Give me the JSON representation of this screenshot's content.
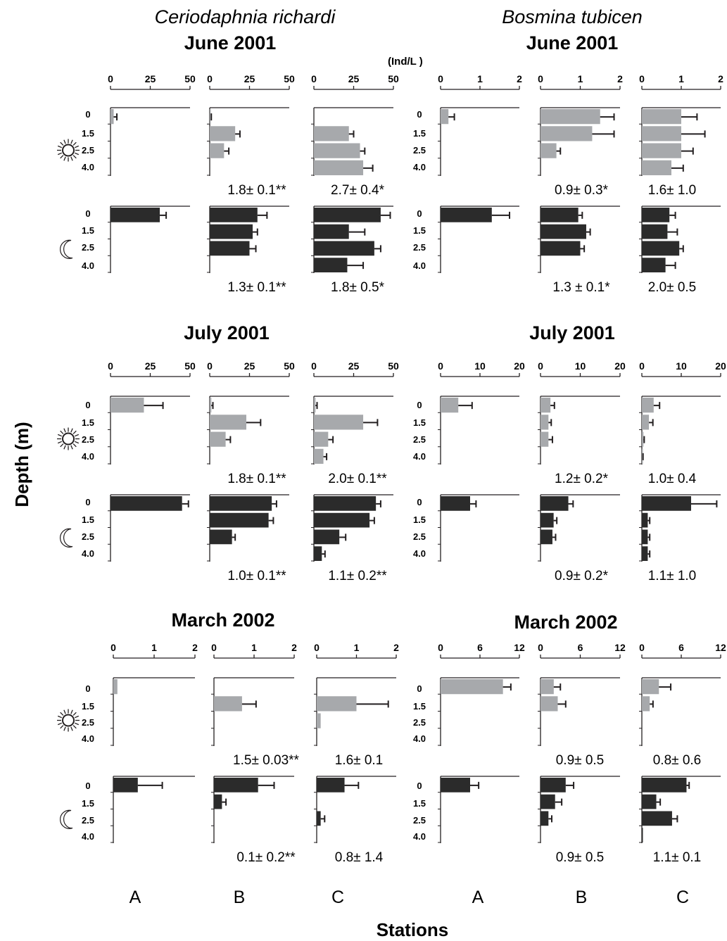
{
  "figure": {
    "species": [
      "Ceriodaphnia richardi",
      "Bosmina tubicen"
    ],
    "unit_label": "(Ind/L  )",
    "ylabel": "Depth (m)",
    "xlabel": "Stations",
    "station_labels": [
      "A",
      "B",
      "C",
      "A",
      "B",
      "C"
    ],
    "colors": {
      "day": "#a7a9ac",
      "night": "#2b2b2b",
      "axis": "#231f20"
    }
  },
  "chart_data": [
    {
      "type": "bar",
      "species": "Ceriodaphnia richardi",
      "period": "June 2001",
      "xlim": [
        0,
        50
      ],
      "ticks": [
        "0",
        "25",
        "50"
      ],
      "depths": [
        "0",
        "1.5",
        "2.5",
        "4.0"
      ],
      "stations": [
        {
          "station": "A",
          "day": {
            "values": [
              2,
              null,
              null,
              null
            ],
            "errors": [
              2,
              null,
              null,
              null
            ],
            "note": ""
          },
          "night": {
            "values": [
              31,
              null,
              null,
              null
            ],
            "errors": [
              4,
              null,
              null,
              null
            ],
            "note": ""
          }
        },
        {
          "station": "B",
          "day": {
            "values": [
              0.5,
              16,
              9,
              null
            ],
            "errors": [
              0.5,
              3,
              3,
              null
            ],
            "note": "1.8± 0.1**"
          },
          "night": {
            "values": [
              30,
              27,
              25,
              null
            ],
            "errors": [
              6,
              3,
              4,
              null
            ],
            "note": "1.3± 0.1**"
          }
        },
        {
          "station": "C",
          "day": {
            "values": null,
            "errors": null,
            "value_series": [
              22,
              29,
              31
            ],
            "note": "2.7± 0.4*"
          },
          "night": {
            "values": [
              42,
              22,
              38,
              21
            ],
            "errors": [
              6,
              10,
              4,
              10
            ],
            "note": "1.8± 0.5*"
          }
        }
      ]
    },
    {
      "type": "bar",
      "species": "Bosmina tubicen",
      "period": "June 2001",
      "xlim": [
        0,
        2
      ],
      "ticks": [
        "0",
        "1",
        "2"
      ],
      "depths": [
        "0",
        "1.5",
        "2.5",
        "4.0"
      ],
      "stations": [
        {
          "station": "A",
          "day": {
            "values": [
              0.2,
              null,
              null,
              null
            ],
            "errors": [
              0.15,
              null,
              null,
              null
            ],
            "note": ""
          },
          "night": {
            "values": [
              1.3,
              null,
              null,
              null
            ],
            "errors": [
              0.45,
              null,
              null,
              null
            ],
            "note": ""
          }
        },
        {
          "station": "B",
          "day": {
            "values": [
              1.5,
              1.3,
              0.4,
              null
            ],
            "errors": [
              0.35,
              0.55,
              0.1,
              null
            ],
            "note": "0.9± 0.3*"
          },
          "night": {
            "values": [
              0.95,
              1.15,
              1.0,
              null
            ],
            "errors": [
              0.1,
              0.1,
              0.1,
              null
            ],
            "note": "1.3 ± 0.1*"
          }
        },
        {
          "station": "C",
          "day": {
            "values": [
              1.0,
              1.0,
              1.0,
              0.75
            ],
            "errors": [
              0.4,
              0.6,
              0.3,
              0.3
            ],
            "note": "1.6± 1.0"
          },
          "night": {
            "values": [
              0.7,
              0.65,
              0.95,
              0.6
            ],
            "errors": [
              0.15,
              0.25,
              0.1,
              0.25
            ],
            "note": "2.0± 0.5"
          }
        }
      ]
    },
    {
      "type": "bar",
      "species": "Ceriodaphnia richardi",
      "period": "July 2001",
      "xlim": [
        0,
        50
      ],
      "ticks": [
        "0",
        "25",
        "50"
      ],
      "depths": [
        "0",
        "1.5",
        "2.5",
        "4.0"
      ],
      "stations": [
        {
          "station": "A",
          "day": {
            "values": [
              21,
              null,
              null,
              null
            ],
            "errors": [
              12,
              null,
              null,
              null
            ],
            "note": ""
          },
          "night": {
            "values": [
              45,
              null,
              null,
              null
            ],
            "errors": [
              4,
              null,
              null,
              null
            ],
            "note": ""
          }
        },
        {
          "station": "B",
          "day": {
            "values": [
              1,
              23,
              10,
              null
            ],
            "errors": [
              1,
              9,
              3,
              null
            ],
            "note": "1.8± 0.1**"
          },
          "night": {
            "values": [
              39,
              37,
              14,
              null
            ],
            "errors": [
              3,
              3,
              2,
              null
            ],
            "note": "1.0± 0.1**"
          }
        },
        {
          "station": "C",
          "day": {
            "values": [
              1,
              31,
              9,
              6
            ],
            "errors": [
              1,
              9,
              3,
              2
            ],
            "note": "2.0± 0.1**"
          },
          "night": {
            "values": [
              39,
              35,
              16,
              5
            ],
            "errors": [
              3,
              3,
              4,
              2
            ],
            "note": "1.1± 0.2**"
          }
        }
      ]
    },
    {
      "type": "bar",
      "species": "Bosmina tubicen",
      "period": "July 2001",
      "xlim": [
        0,
        20
      ],
      "ticks": [
        "0",
        "10",
        "20"
      ],
      "depths": [
        "0",
        "1.5",
        "2.5",
        "4.0"
      ],
      "stations": [
        {
          "station": "A",
          "day": {
            "values": [
              4.5,
              null,
              null,
              null
            ],
            "errors": [
              3.5,
              null,
              null,
              null
            ],
            "note": ""
          },
          "night": {
            "values": [
              7.5,
              null,
              null,
              null
            ],
            "errors": [
              1.5,
              null,
              null,
              null
            ],
            "note": ""
          }
        },
        {
          "station": "B",
          "day": {
            "values": [
              2.5,
              2.0,
              2.0,
              null
            ],
            "errors": [
              1.0,
              0.7,
              1.0,
              null
            ],
            "note": "1.2± 0.2*"
          },
          "night": {
            "values": [
              7.0,
              3.3,
              3.0,
              null
            ],
            "errors": [
              1.2,
              0.8,
              0.8,
              null
            ],
            "note": "0.9± 0.2*"
          }
        },
        {
          "station": "C",
          "day": {
            "values": [
              3.0,
              1.8,
              0.4,
              0.1
            ],
            "errors": [
              1.5,
              1.0,
              0.2,
              0.2
            ],
            "note": "1.0± 0.4"
          },
          "night": {
            "values": [
              12.5,
              1.5,
              1.5,
              1.5
            ],
            "errors": [
              6.5,
              0.5,
              0.5,
              0.5
            ],
            "note": "1.1± 1.0"
          }
        }
      ]
    },
    {
      "type": "bar",
      "species": "Ceriodaphnia richardi",
      "period": "March 2002",
      "xlim": [
        0,
        2
      ],
      "ticks": [
        "0",
        "1",
        "2"
      ],
      "depths": [
        "0",
        "1.5",
        "2.5",
        "4.0"
      ],
      "stations": [
        {
          "station": "A",
          "day": {
            "values": [
              0.1,
              null,
              null,
              null
            ],
            "errors": [
              null,
              null,
              null,
              null
            ],
            "note": ""
          },
          "night": {
            "values": [
              0.6,
              null,
              null,
              null
            ],
            "errors": [
              0.6,
              null,
              null,
              null
            ],
            "note": ""
          }
        },
        {
          "station": "B",
          "day": {
            "values": [
              null,
              0.7,
              null,
              null
            ],
            "errors": [
              null,
              0.35,
              null,
              null
            ],
            "note": "1.5± 0.03**"
          },
          "night": {
            "values": [
              1.1,
              0.2,
              null,
              null
            ],
            "errors": [
              0.4,
              0.1,
              null,
              null
            ],
            "note": "0.1± 0.2**"
          }
        },
        {
          "station": "C",
          "day": {
            "values": [
              null,
              1.0,
              0.1,
              null
            ],
            "errors": [
              null,
              0.8,
              null,
              null
            ],
            "note": "1.6± 0.1"
          },
          "night": {
            "values": [
              0.7,
              null,
              0.1,
              null
            ],
            "errors": [
              0.35,
              null,
              0.1,
              null
            ],
            "note": "0.8± 1.4"
          }
        }
      ]
    },
    {
      "type": "bar",
      "species": "Bosmina tubicen",
      "period": "March 2002",
      "xlim": [
        0,
        12
      ],
      "ticks": [
        "0",
        "6",
        "12"
      ],
      "depths": [
        "0",
        "1.5",
        "2.5",
        "4.0"
      ],
      "stations": [
        {
          "station": "A",
          "day": {
            "values": [
              9.5,
              null,
              null,
              null
            ],
            "errors": [
              1.2,
              null,
              null,
              null
            ],
            "note": ""
          },
          "night": {
            "values": [
              4.5,
              null,
              null,
              null
            ],
            "errors": [
              1.3,
              null,
              null,
              null
            ],
            "note": ""
          }
        },
        {
          "station": "B",
          "day": {
            "values": [
              2.0,
              2.6,
              null,
              null
            ],
            "errors": [
              1.0,
              1.2,
              null,
              null
            ],
            "note": "0.9± 0.5"
          },
          "night": {
            "values": [
              3.8,
              2.2,
              1.2,
              null
            ],
            "errors": [
              1.2,
              1.0,
              0.5,
              null
            ],
            "note": "0.9± 0.5"
          }
        },
        {
          "station": "C",
          "day": {
            "values": [
              2.6,
              1.2,
              null,
              null
            ],
            "errors": [
              1.8,
              0.5,
              null,
              null
            ],
            "note": "0.8± 0.6"
          },
          "night": {
            "values": [
              6.8,
              2.2,
              4.6,
              0.1
            ],
            "errors": [
              0.4,
              0.6,
              0.8,
              null
            ],
            "note": "1.1± 0.1"
          }
        }
      ]
    }
  ]
}
